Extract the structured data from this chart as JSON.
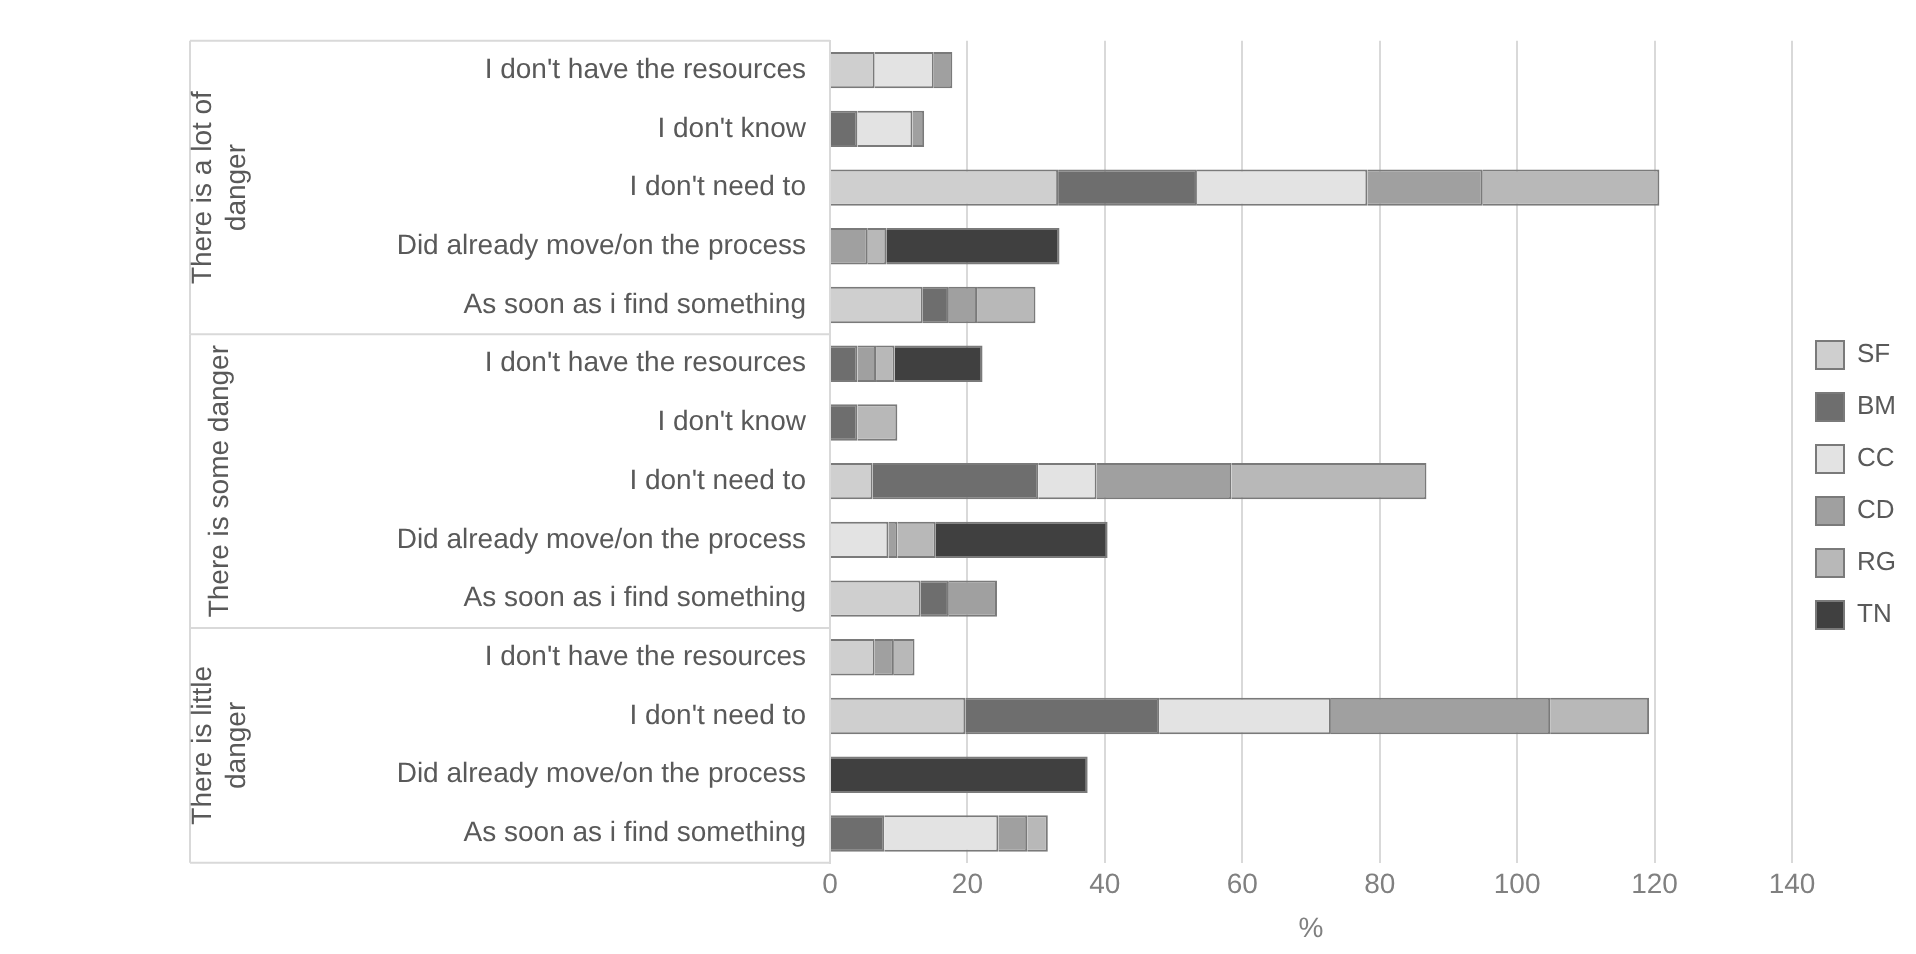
{
  "chart_data": {
    "type": "bar",
    "orientation": "horizontal",
    "stacked": true,
    "categories": [
      "I don't have the resources",
      "I don't know",
      "I don't need to",
      "Did already move/on the process",
      "As soon as i find something",
      "I don't have the resources",
      "I don't know",
      "I don't need to",
      "Did already move/on the process",
      "As soon as i find something",
      "I don't have the resources",
      "I don't need to",
      "Did already move/on the process",
      "As soon as i find something"
    ],
    "series": [
      {
        "name": "SF",
        "color": "#cfcfcf",
        "values": [
          6.5,
          0,
          33.2,
          0,
          13.5,
          0,
          0,
          6.2,
          0,
          13.2,
          6.5,
          19.7,
          0,
          0
        ]
      },
      {
        "name": "BM",
        "color": "#6e6e6e",
        "values": [
          0,
          4,
          20.2,
          0,
          3.8,
          4,
          4,
          24.1,
          0,
          4.1,
          0,
          28.2,
          0,
          7.9
        ]
      },
      {
        "name": "CC",
        "color": "#e3e3e3",
        "values": [
          8.6,
          8,
          24.8,
          0,
          0,
          0,
          0,
          8.5,
          8.5,
          0,
          0,
          25,
          0,
          16.6
        ]
      },
      {
        "name": "CD",
        "color": "#a0a0a0",
        "values": [
          2.7,
          1.7,
          16.8,
          5.5,
          4.1,
          2.7,
          0,
          19.6,
          1.3,
          7,
          2.8,
          31.9,
          0,
          4.2
        ]
      },
      {
        "name": "RG",
        "color": "#b8b8b8",
        "values": [
          0,
          0,
          25.7,
          2.7,
          8.5,
          2.7,
          5.8,
          28.4,
          5.6,
          0,
          3,
          14.4,
          0,
          3
        ]
      },
      {
        "name": "TN",
        "color": "#404040",
        "values": [
          0,
          0,
          0,
          25.2,
          0,
          12.8,
          0,
          0,
          25,
          0,
          0,
          0,
          37.5,
          0
        ]
      }
    ],
    "xlabel": "%",
    "xlim": [
      0,
      140
    ],
    "xticks": [
      0,
      20,
      40,
      60,
      80,
      100,
      120,
      140
    ],
    "grid": "x",
    "legend": "right",
    "annotations": [
      "There is a lot of danger",
      "There is some danger",
      "There is little danger"
    ]
  }
}
